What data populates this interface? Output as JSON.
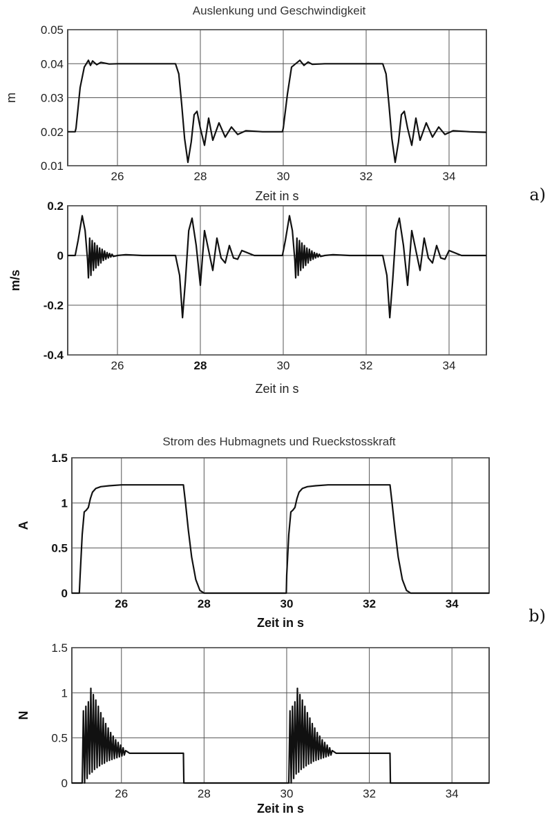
{
  "figure": {
    "title_a": "Auslenkung und Geschwindigkeit",
    "title_b": "Strom des Hubmagnets und Rueckstosskraft",
    "label_a": "a)",
    "label_b": "b)"
  },
  "chart_data": [
    {
      "type": "line",
      "title": "Auslenkung und Geschwindigkeit",
      "xlabel": "Zeit in s",
      "ylabel": "m",
      "xlim": [
        24.8,
        34.9
      ],
      "ylim": [
        0.01,
        0.05
      ],
      "xticks": [
        26,
        28,
        30,
        32,
        34
      ],
      "yticks": [
        0.01,
        0.02,
        0.03,
        0.04,
        0.05
      ],
      "ytick_labels": [
        "0.01",
        "0.02",
        "0.03",
        "0.04",
        "0.05"
      ],
      "grid": true,
      "series": [
        {
          "x": [
            24.8,
            24.98,
            25.0,
            25.05,
            25.1,
            25.2,
            25.3,
            25.35,
            25.4,
            25.5,
            25.6,
            25.8,
            26.0,
            27.4,
            27.48,
            27.55,
            27.62,
            27.7,
            27.78,
            27.85,
            27.92,
            28.0,
            28.1,
            28.2,
            28.3,
            28.45,
            28.6,
            28.75,
            28.9,
            29.1,
            29.5,
            29.98,
            30.0,
            30.1,
            30.2,
            30.4,
            30.5,
            30.6,
            30.7,
            31.0,
            32.4,
            32.48,
            32.55,
            32.62,
            32.7,
            32.78,
            32.85,
            32.92,
            33.0,
            33.1,
            33.2,
            33.3,
            33.45,
            33.6,
            33.75,
            33.9,
            34.1,
            34.5,
            34.9
          ],
          "y": [
            0.02,
            0.02,
            0.021,
            0.027,
            0.033,
            0.039,
            0.041,
            0.0395,
            0.0408,
            0.0397,
            0.0404,
            0.0399,
            0.04,
            0.04,
            0.037,
            0.028,
            0.018,
            0.011,
            0.017,
            0.025,
            0.026,
            0.021,
            0.016,
            0.024,
            0.0175,
            0.0226,
            0.0184,
            0.0214,
            0.0192,
            0.0203,
            0.02,
            0.02,
            0.021,
            0.031,
            0.039,
            0.041,
            0.0395,
            0.0405,
            0.0398,
            0.04,
            0.04,
            0.037,
            0.028,
            0.018,
            0.011,
            0.017,
            0.025,
            0.026,
            0.021,
            0.016,
            0.024,
            0.0175,
            0.0226,
            0.0184,
            0.0214,
            0.0192,
            0.0203,
            0.02,
            0.0198
          ]
        }
      ]
    },
    {
      "type": "line",
      "xlabel": "Zeit in s",
      "ylabel": "m/s",
      "xlim": [
        24.8,
        34.9
      ],
      "ylim": [
        -0.4,
        0.2
      ],
      "xticks": [
        26,
        28,
        30,
        32,
        34
      ],
      "yticks": [
        -0.4,
        -0.2,
        0,
        0.2
      ],
      "ytick_labels": [
        "-0.4",
        "-0.2",
        "0",
        "0.2"
      ],
      "grid": true,
      "series": [
        {
          "x": [
            24.8,
            24.98,
            25.05,
            25.15,
            25.22,
            25.28,
            25.3,
            25.33,
            25.36,
            25.39,
            25.42,
            25.45,
            25.48,
            25.51,
            25.54,
            25.57,
            25.6,
            25.63,
            25.66,
            25.69,
            25.72,
            25.75,
            25.78,
            25.81,
            25.84,
            25.87,
            25.9,
            26.0,
            26.2,
            26.6,
            27.4,
            27.5,
            27.57,
            27.64,
            27.72,
            27.8,
            27.9,
            28.0,
            28.1,
            28.2,
            28.3,
            28.4,
            28.5,
            28.6,
            28.7,
            28.8,
            28.9,
            29.0,
            29.3,
            29.98,
            30.05,
            30.15,
            30.22,
            30.28,
            30.3,
            30.33,
            30.36,
            30.39,
            30.42,
            30.45,
            30.48,
            30.51,
            30.54,
            30.57,
            30.6,
            30.63,
            30.66,
            30.69,
            30.72,
            30.75,
            30.78,
            30.81,
            30.84,
            30.87,
            30.9,
            31.0,
            31.2,
            31.6,
            32.4,
            32.5,
            32.57,
            32.64,
            32.72,
            32.8,
            32.9,
            33.0,
            33.1,
            33.2,
            33.3,
            33.4,
            33.5,
            33.6,
            33.7,
            33.8,
            33.9,
            34.0,
            34.3,
            34.9
          ],
          "y": [
            0,
            0,
            0.06,
            0.16,
            0.1,
            -0.02,
            -0.09,
            0.07,
            -0.08,
            0.06,
            -0.06,
            0.05,
            -0.05,
            0.04,
            -0.04,
            0.03,
            -0.03,
            0.025,
            -0.02,
            0.018,
            -0.015,
            0.012,
            -0.01,
            0.008,
            -0.006,
            0.005,
            -0.004,
            0,
            0.003,
            0,
            0,
            -0.08,
            -0.25,
            -0.1,
            0.1,
            0.15,
            0.04,
            -0.12,
            0.1,
            0.02,
            -0.06,
            0.07,
            -0.01,
            -0.03,
            0.04,
            -0.01,
            -0.015,
            0.02,
            0,
            0,
            0.06,
            0.16,
            0.1,
            -0.02,
            -0.09,
            0.07,
            -0.08,
            0.06,
            -0.06,
            0.05,
            -0.05,
            0.04,
            -0.04,
            0.03,
            -0.03,
            0.025,
            -0.02,
            0.018,
            -0.015,
            0.012,
            -0.01,
            0.008,
            -0.006,
            0.005,
            -0.004,
            0,
            0.003,
            0,
            0,
            -0.08,
            -0.25,
            -0.1,
            0.1,
            0.15,
            0.04,
            -0.12,
            0.1,
            0.02,
            -0.06,
            0.07,
            -0.01,
            -0.03,
            0.04,
            -0.01,
            -0.015,
            0.02,
            0,
            0
          ]
        }
      ]
    },
    {
      "type": "line",
      "title": "Strom des Hubmagnets und Rueckstosskraft",
      "xlabel": "Zeit in s",
      "ylabel": "A",
      "xlim": [
        24.8,
        34.9
      ],
      "ylim": [
        0,
        1.5
      ],
      "xticks": [
        26,
        28,
        30,
        32,
        34
      ],
      "yticks": [
        0,
        0.5,
        1,
        1.5
      ],
      "ytick_labels": [
        "0",
        "0.5",
        "1",
        "1.5"
      ],
      "grid": true,
      "series": [
        {
          "x": [
            24.8,
            24.98,
            25.0,
            25.05,
            25.1,
            25.15,
            25.2,
            25.25,
            25.3,
            25.38,
            25.5,
            25.7,
            26.0,
            27.5,
            27.55,
            27.62,
            27.7,
            27.8,
            27.9,
            28.0,
            29.99,
            30.0,
            30.05,
            30.1,
            30.15,
            30.2,
            30.25,
            30.3,
            30.38,
            30.5,
            30.7,
            31.0,
            32.5,
            32.55,
            32.62,
            32.7,
            32.8,
            32.9,
            33.0,
            34.9
          ],
          "y": [
            0,
            0,
            0.2,
            0.65,
            0.9,
            0.92,
            0.95,
            1.05,
            1.12,
            1.16,
            1.18,
            1.19,
            1.2,
            1.2,
            1.0,
            0.7,
            0.4,
            0.15,
            0.03,
            0,
            0,
            0.2,
            0.65,
            0.9,
            0.92,
            0.95,
            1.05,
            1.12,
            1.16,
            1.18,
            1.19,
            1.2,
            1.2,
            1.0,
            0.7,
            0.4,
            0.15,
            0.03,
            0,
            0
          ]
        }
      ]
    },
    {
      "type": "line",
      "xlabel": "Zeit in s",
      "ylabel": "N",
      "xlim": [
        24.8,
        34.9
      ],
      "ylim": [
        0,
        1.5
      ],
      "xticks": [
        26,
        28,
        30,
        32,
        34
      ],
      "yticks": [
        0,
        0.5,
        1,
        1.5
      ],
      "ytick_labels": [
        "0",
        "0.5",
        "1",
        "1.5"
      ],
      "grid": true,
      "series": [
        {
          "x": [
            24.8,
            25.05,
            25.08,
            25.11,
            25.14,
            25.17,
            25.2,
            25.23,
            25.26,
            25.29,
            25.32,
            25.35,
            25.38,
            25.41,
            25.44,
            25.47,
            25.5,
            25.53,
            25.56,
            25.59,
            25.62,
            25.65,
            25.68,
            25.71,
            25.74,
            25.77,
            25.8,
            25.83,
            25.86,
            25.89,
            25.92,
            25.95,
            25.98,
            26.01,
            26.04,
            26.07,
            26.1,
            26.2,
            27.5,
            27.51,
            28.0,
            30.05,
            30.08,
            30.11,
            30.14,
            30.17,
            30.2,
            30.23,
            30.26,
            30.29,
            30.32,
            30.35,
            30.38,
            30.41,
            30.44,
            30.47,
            30.5,
            30.53,
            30.56,
            30.59,
            30.62,
            30.65,
            30.68,
            30.71,
            30.74,
            30.77,
            30.8,
            30.83,
            30.86,
            30.89,
            30.92,
            30.95,
            30.98,
            31.01,
            31.04,
            31.07,
            31.1,
            31.2,
            32.5,
            32.51,
            34.9
          ],
          "y": [
            0,
            0,
            0.8,
            0,
            0.85,
            0.05,
            0.9,
            0.1,
            1.05,
            0.12,
            0.98,
            0.15,
            0.92,
            0.17,
            0.85,
            0.19,
            0.78,
            0.21,
            0.72,
            0.22,
            0.66,
            0.24,
            0.61,
            0.25,
            0.56,
            0.26,
            0.52,
            0.27,
            0.48,
            0.28,
            0.45,
            0.29,
            0.42,
            0.3,
            0.39,
            0.31,
            0.36,
            0.33,
            0.33,
            0,
            0,
            0,
            0.8,
            0,
            0.85,
            0.05,
            0.9,
            0.1,
            1.05,
            0.12,
            0.98,
            0.15,
            0.92,
            0.17,
            0.85,
            0.19,
            0.78,
            0.21,
            0.72,
            0.22,
            0.66,
            0.24,
            0.61,
            0.25,
            0.56,
            0.26,
            0.52,
            0.27,
            0.48,
            0.28,
            0.45,
            0.29,
            0.42,
            0.3,
            0.39,
            0.31,
            0.36,
            0.33,
            0.33,
            0,
            0
          ]
        }
      ]
    }
  ]
}
